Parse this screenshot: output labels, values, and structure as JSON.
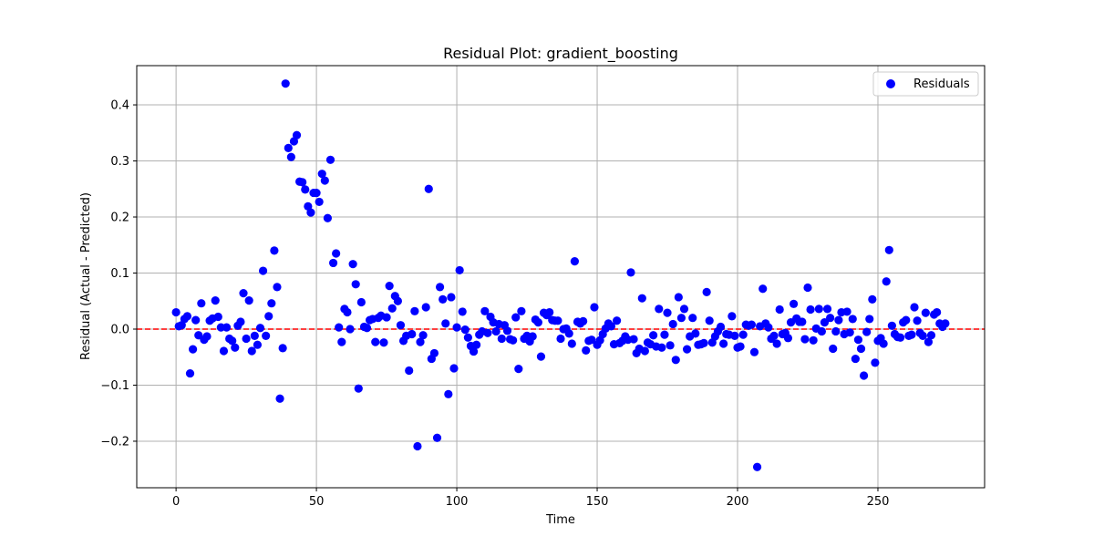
{
  "chart_data": {
    "type": "scatter",
    "title": "Residual Plot: gradient_boosting",
    "xlabel": "Time",
    "ylabel": "Residual (Actual - Predicted)",
    "xlim": [
      -14,
      288
    ],
    "ylim": [
      -0.283,
      0.47
    ],
    "xticks": [
      0,
      50,
      100,
      150,
      200,
      250
    ],
    "yticks": [
      -0.2,
      -0.1,
      0.0,
      0.1,
      0.2,
      0.3,
      0.4
    ],
    "grid": true,
    "legend_position": "top-right",
    "reference_line": {
      "y": 0,
      "style": "dashed",
      "color": "#ff0000"
    },
    "series": [
      {
        "name": "Residuals",
        "color": "#0000ff",
        "points": [
          [
            0,
            0.03
          ],
          [
            1,
            0.005
          ],
          [
            2,
            0.007
          ],
          [
            3,
            0.018
          ],
          [
            4,
            0.023
          ],
          [
            5,
            -0.079
          ],
          [
            6,
            -0.036
          ],
          [
            7,
            0.016
          ],
          [
            8,
            -0.011
          ],
          [
            9,
            0.046
          ],
          [
            10,
            -0.019
          ],
          [
            11,
            -0.013
          ],
          [
            12,
            0.015
          ],
          [
            13,
            0.019
          ],
          [
            14,
            0.051
          ],
          [
            15,
            0.022
          ],
          [
            16,
            0.003
          ],
          [
            17,
            -0.039
          ],
          [
            18,
            0.003
          ],
          [
            19,
            -0.017
          ],
          [
            20,
            -0.021
          ],
          [
            21,
            -0.033
          ],
          [
            22,
            0.006
          ],
          [
            23,
            0.013
          ],
          [
            24,
            0.064
          ],
          [
            25,
            -0.017
          ],
          [
            26,
            0.051
          ],
          [
            27,
            -0.039
          ],
          [
            28,
            -0.012
          ],
          [
            29,
            -0.028
          ],
          [
            30,
            0.002
          ],
          [
            31,
            0.104
          ],
          [
            32,
            -0.012
          ],
          [
            33,
            0.023
          ],
          [
            34,
            0.046
          ],
          [
            35,
            0.14
          ],
          [
            36,
            0.075
          ],
          [
            37,
            -0.124
          ],
          [
            38,
            -0.034
          ],
          [
            39,
            0.438
          ],
          [
            40,
            0.323
          ],
          [
            41,
            0.307
          ],
          [
            42,
            0.335
          ],
          [
            43,
            0.346
          ],
          [
            44,
            0.263
          ],
          [
            45,
            0.262
          ],
          [
            46,
            0.249
          ],
          [
            47,
            0.219
          ],
          [
            48,
            0.208
          ],
          [
            49,
            0.243
          ],
          [
            50,
            0.243
          ],
          [
            51,
            0.227
          ],
          [
            52,
            0.277
          ],
          [
            53,
            0.265
          ],
          [
            54,
            0.198
          ],
          [
            55,
            0.302
          ],
          [
            56,
            0.118
          ],
          [
            57,
            0.135
          ],
          [
            58,
            0.003
          ],
          [
            59,
            -0.023
          ],
          [
            60,
            0.036
          ],
          [
            61,
            0.03
          ],
          [
            62,
            0.0
          ],
          [
            63,
            0.116
          ],
          [
            64,
            0.08
          ],
          [
            65,
            -0.106
          ],
          [
            66,
            0.048
          ],
          [
            67,
            0.004
          ],
          [
            68,
            0.002
          ],
          [
            69,
            0.016
          ],
          [
            70,
            0.018
          ],
          [
            71,
            -0.023
          ],
          [
            72,
            0.02
          ],
          [
            73,
            0.024
          ],
          [
            74,
            -0.024
          ],
          [
            75,
            0.021
          ],
          [
            76,
            0.077
          ],
          [
            77,
            0.037
          ],
          [
            78,
            0.059
          ],
          [
            79,
            0.05
          ],
          [
            80,
            0.007
          ],
          [
            81,
            -0.021
          ],
          [
            82,
            -0.012
          ],
          [
            83,
            -0.074
          ],
          [
            84,
            -0.009
          ],
          [
            85,
            0.032
          ],
          [
            86,
            -0.209
          ],
          [
            87,
            -0.023
          ],
          [
            88,
            -0.011
          ],
          [
            89,
            0.039
          ],
          [
            90,
            0.25
          ],
          [
            91,
            -0.053
          ],
          [
            92,
            -0.043
          ],
          [
            93,
            -0.194
          ],
          [
            94,
            0.075
          ],
          [
            95,
            0.053
          ],
          [
            96,
            0.01
          ],
          [
            97,
            -0.116
          ],
          [
            98,
            0.057
          ],
          [
            99,
            -0.07
          ],
          [
            100,
            0.003
          ],
          [
            101,
            0.105
          ],
          [
            102,
            0.031
          ],
          [
            103,
            -0.001
          ],
          [
            104,
            -0.015
          ],
          [
            105,
            -0.03
          ],
          [
            106,
            -0.04
          ],
          [
            107,
            -0.028
          ],
          [
            108,
            -0.01
          ],
          [
            109,
            -0.004
          ],
          [
            110,
            0.032
          ],
          [
            111,
            -0.007
          ],
          [
            112,
            0.022
          ],
          [
            113,
            0.012
          ],
          [
            114,
            -0.004
          ],
          [
            115,
            0.009
          ],
          [
            116,
            -0.017
          ],
          [
            117,
            0.007
          ],
          [
            118,
            -0.003
          ],
          [
            119,
            -0.018
          ],
          [
            120,
            -0.02
          ],
          [
            121,
            0.021
          ],
          [
            122,
            -0.071
          ],
          [
            123,
            0.032
          ],
          [
            124,
            -0.017
          ],
          [
            125,
            -0.012
          ],
          [
            126,
            -0.022
          ],
          [
            127,
            -0.013
          ],
          [
            128,
            0.017
          ],
          [
            129,
            0.012
          ],
          [
            130,
            -0.049
          ],
          [
            131,
            0.029
          ],
          [
            132,
            0.025
          ],
          [
            133,
            0.03
          ],
          [
            134,
            0.016
          ],
          [
            135,
            0.015
          ],
          [
            136,
            0.015
          ],
          [
            137,
            -0.017
          ],
          [
            138,
            0.0
          ],
          [
            139,
            0.001
          ],
          [
            140,
            -0.008
          ],
          [
            141,
            -0.026
          ],
          [
            142,
            0.121
          ],
          [
            143,
            0.013
          ],
          [
            144,
            0.01
          ],
          [
            145,
            0.014
          ],
          [
            146,
            -0.038
          ],
          [
            147,
            -0.021
          ],
          [
            148,
            -0.019
          ],
          [
            149,
            0.039
          ],
          [
            150,
            -0.028
          ],
          [
            151,
            -0.02
          ],
          [
            152,
            -0.009
          ],
          [
            153,
            0.001
          ],
          [
            154,
            0.01
          ],
          [
            155,
            0.005
          ],
          [
            156,
            -0.027
          ],
          [
            157,
            0.015
          ],
          [
            158,
            -0.025
          ],
          [
            159,
            -0.021
          ],
          [
            160,
            -0.013
          ],
          [
            161,
            -0.019
          ],
          [
            162,
            0.101
          ],
          [
            163,
            -0.018
          ],
          [
            164,
            -0.043
          ],
          [
            165,
            -0.035
          ],
          [
            166,
            0.055
          ],
          [
            167,
            -0.039
          ],
          [
            168,
            -0.024
          ],
          [
            169,
            -0.027
          ],
          [
            170,
            -0.011
          ],
          [
            171,
            -0.031
          ],
          [
            172,
            0.036
          ],
          [
            173,
            -0.033
          ],
          [
            174,
            -0.01
          ],
          [
            175,
            0.029
          ],
          [
            176,
            -0.029
          ],
          [
            177,
            0.009
          ],
          [
            178,
            -0.055
          ],
          [
            179,
            0.057
          ],
          [
            180,
            0.02
          ],
          [
            181,
            0.036
          ],
          [
            182,
            -0.036
          ],
          [
            183,
            -0.013
          ],
          [
            184,
            0.02
          ],
          [
            185,
            -0.008
          ],
          [
            186,
            -0.028
          ],
          [
            187,
            -0.027
          ],
          [
            188,
            -0.025
          ],
          [
            189,
            0.066
          ],
          [
            190,
            0.015
          ],
          [
            191,
            -0.024
          ],
          [
            192,
            -0.013
          ],
          [
            193,
            -0.004
          ],
          [
            194,
            0.004
          ],
          [
            195,
            -0.026
          ],
          [
            196,
            -0.009
          ],
          [
            197,
            -0.01
          ],
          [
            198,
            0.023
          ],
          [
            199,
            -0.012
          ],
          [
            200,
            -0.033
          ],
          [
            201,
            -0.031
          ],
          [
            202,
            -0.01
          ],
          [
            203,
            0.008
          ],
          [
            204,
            0.006
          ],
          [
            205,
            0.008
          ],
          [
            206,
            -0.041
          ],
          [
            207,
            -0.246
          ],
          [
            208,
            0.005
          ],
          [
            209,
            0.072
          ],
          [
            210,
            0.01
          ],
          [
            211,
            0.003
          ],
          [
            212,
            -0.017
          ],
          [
            213,
            -0.012
          ],
          [
            214,
            -0.026
          ],
          [
            215,
            0.035
          ],
          [
            216,
            -0.009
          ],
          [
            217,
            -0.007
          ],
          [
            218,
            -0.016
          ],
          [
            219,
            0.012
          ],
          [
            220,
            0.045
          ],
          [
            221,
            0.019
          ],
          [
            222,
            0.013
          ],
          [
            223,
            0.013
          ],
          [
            224,
            -0.018
          ],
          [
            225,
            0.074
          ],
          [
            226,
            0.035
          ],
          [
            227,
            -0.02
          ],
          [
            228,
            0.001
          ],
          [
            229,
            0.036
          ],
          [
            230,
            -0.004
          ],
          [
            231,
            0.012
          ],
          [
            232,
            0.036
          ],
          [
            233,
            0.02
          ],
          [
            234,
            -0.035
          ],
          [
            235,
            -0.004
          ],
          [
            236,
            0.016
          ],
          [
            237,
            0.03
          ],
          [
            238,
            -0.009
          ],
          [
            239,
            0.031
          ],
          [
            240,
            -0.006
          ],
          [
            241,
            0.018
          ],
          [
            242,
            -0.053
          ],
          [
            243,
            -0.019
          ],
          [
            244,
            -0.035
          ],
          [
            245,
            -0.083
          ],
          [
            246,
            -0.005
          ],
          [
            247,
            0.018
          ],
          [
            248,
            0.053
          ],
          [
            249,
            -0.06
          ],
          [
            250,
            -0.021
          ],
          [
            251,
            -0.016
          ],
          [
            252,
            -0.026
          ],
          [
            253,
            0.085
          ],
          [
            254,
            0.141
          ],
          [
            255,
            0.006
          ],
          [
            256,
            -0.009
          ],
          [
            257,
            -0.014
          ],
          [
            258,
            -0.015
          ],
          [
            259,
            0.012
          ],
          [
            260,
            0.016
          ],
          [
            261,
            -0.012
          ],
          [
            262,
            -0.01
          ],
          [
            263,
            0.039
          ],
          [
            264,
            0.015
          ],
          [
            265,
            -0.007
          ],
          [
            266,
            -0.012
          ],
          [
            267,
            0.029
          ],
          [
            268,
            -0.023
          ],
          [
            269,
            -0.011
          ],
          [
            270,
            0.026
          ],
          [
            271,
            0.03
          ],
          [
            272,
            0.01
          ],
          [
            273,
            0.004
          ],
          [
            274,
            0.01
          ]
        ]
      }
    ]
  }
}
